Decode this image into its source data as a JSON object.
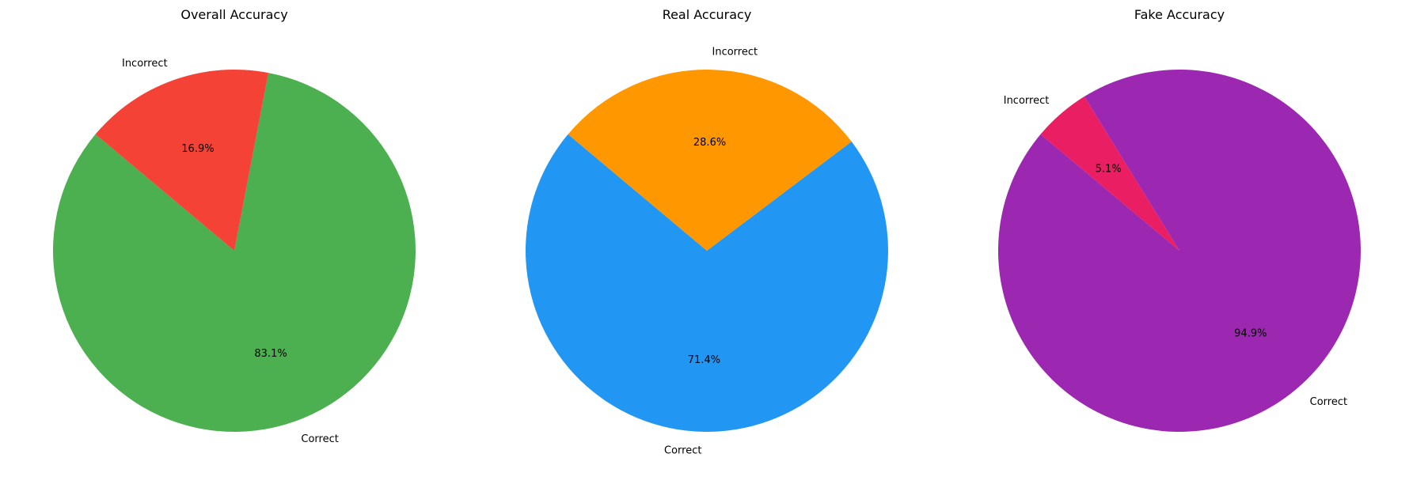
{
  "chart_data": [
    {
      "type": "pie",
      "title": "Overall Accuracy",
      "start_angle_deg": 140,
      "direction": "counterclockwise",
      "slices": [
        {
          "label": "Correct",
          "value": 83.1,
          "pct_label": "83.1%",
          "color": "#4CAF50"
        },
        {
          "label": "Incorrect",
          "value": 16.9,
          "pct_label": "16.9%",
          "color": "#F44336"
        }
      ]
    },
    {
      "type": "pie",
      "title": "Real Accuracy",
      "start_angle_deg": 140,
      "direction": "counterclockwise",
      "slices": [
        {
          "label": "Correct",
          "value": 71.4,
          "pct_label": "71.4%",
          "color": "#2196F3"
        },
        {
          "label": "Incorrect",
          "value": 28.6,
          "pct_label": "28.6%",
          "color": "#FF9800"
        }
      ]
    },
    {
      "type": "pie",
      "title": "Fake Accuracy",
      "start_angle_deg": 140,
      "direction": "counterclockwise",
      "slices": [
        {
          "label": "Correct",
          "value": 94.9,
          "pct_label": "94.9%",
          "color": "#9C27B0"
        },
        {
          "label": "Incorrect",
          "value": 5.1,
          "pct_label": "5.1%",
          "color": "#E91E63"
        }
      ]
    }
  ]
}
